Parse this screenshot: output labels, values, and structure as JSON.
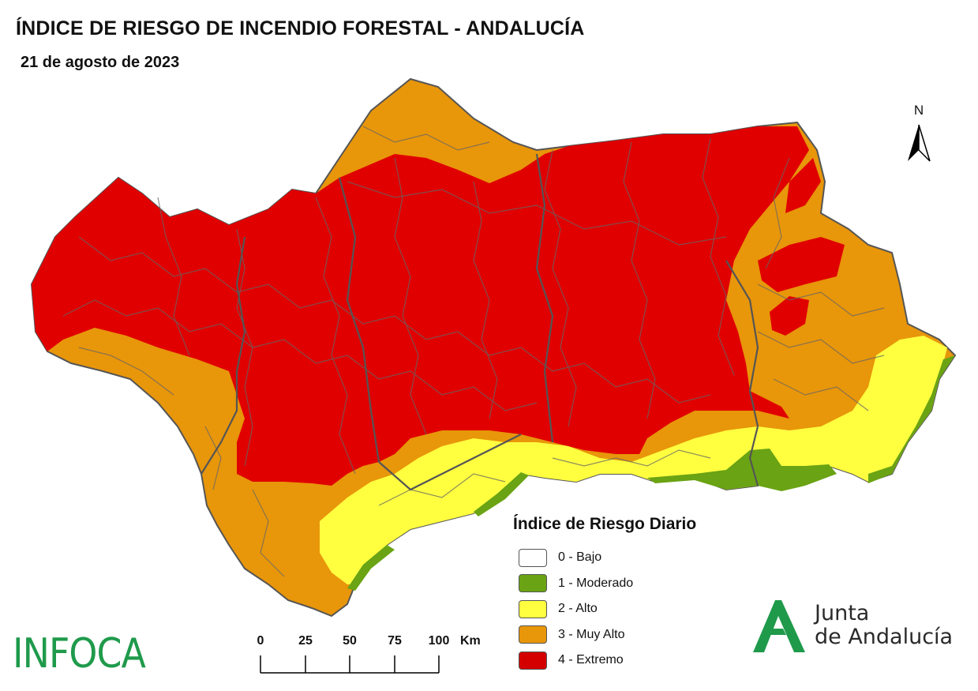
{
  "header": {
    "title": "ÍNDICE DE RIESGO DE INCENDIO FORESTAL - ANDALUCÍA",
    "date": "21 de agosto de 2023"
  },
  "north_arrow": {
    "label": "N"
  },
  "legend": {
    "title": "Índice de Riesgo Diario",
    "items": [
      {
        "label": "0 - Bajo",
        "color": "#ffffff"
      },
      {
        "label": "1 - Moderado",
        "color": "#6aa313"
      },
      {
        "label": "2 - Alto",
        "color": "#ffff40"
      },
      {
        "label": "3 - Muy Alto",
        "color": "#e8960a"
      },
      {
        "label": "4 - Extremo",
        "color": "#d40000"
      }
    ]
  },
  "scale_bar": {
    "ticks": [
      "0",
      "25",
      "50",
      "75",
      "100"
    ],
    "unit": "Km"
  },
  "logos": {
    "left": "INFOCA",
    "right_line1": "Junta",
    "right_line2": "de Andalucía"
  },
  "colors": {
    "extremo": "#e00000",
    "muy_alto": "#e8960a",
    "alto": "#ffff40",
    "moderado": "#6aa313",
    "boundary": "#555555",
    "brand_green": "#1f9a4b"
  }
}
